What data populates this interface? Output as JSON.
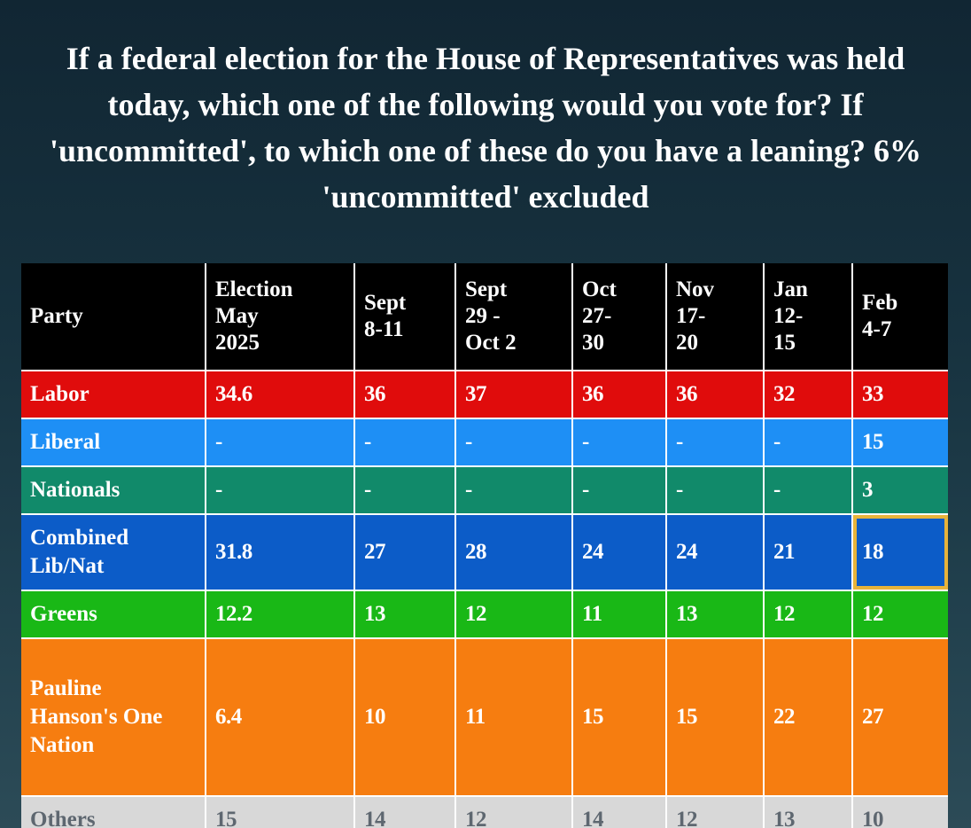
{
  "title": "If a federal election for the House of Representatives was held today, which one of the following would you vote for? If 'uncommitted', to which one of these do you have a leaning? 6% 'uncommitted' excluded",
  "chart_data": {
    "type": "table",
    "title": "If a federal election for the House of Representatives was held today, which one of the following would you vote for? If 'uncommitted', to which one of these do you have a leaning? 6% 'uncommitted' excluded",
    "row_header": "Party",
    "columns": [
      "Election May 2025",
      "Sept 8-11",
      "Sept 29 - Oct 2",
      "Oct 27-30",
      "Nov 17-20",
      "Jan 12-15",
      "Feb 4-7"
    ],
    "rows": [
      {
        "party": "Labor",
        "values": [
          "34.6",
          "36",
          "37",
          "36",
          "36",
          "32",
          "33"
        ],
        "color": "#e00c0c",
        "text_color": "#ffffff",
        "highlight": null
      },
      {
        "party": "Liberal",
        "values": [
          "-",
          "-",
          "-",
          "-",
          "-",
          "-",
          "15"
        ],
        "color": "#1e8ff5",
        "text_color": "#ffffff",
        "highlight": null
      },
      {
        "party": "Nationals",
        "values": [
          "-",
          "-",
          "-",
          "-",
          "-",
          "-",
          "3"
        ],
        "color": "#118a6a",
        "text_color": "#ffffff",
        "highlight": null
      },
      {
        "party": "Combined Lib/Nat",
        "values": [
          "31.8",
          "27",
          "28",
          "24",
          "24",
          "21",
          "18"
        ],
        "color": "#0c5cc8",
        "text_color": "#ffffff",
        "highlight": 6
      },
      {
        "party": "Greens",
        "values": [
          "12.2",
          "13",
          "12",
          "11",
          "13",
          "12",
          "12"
        ],
        "color": "#19b816",
        "text_color": "#ffffff",
        "highlight": null
      },
      {
        "party": "Pauline Hanson's One Nation",
        "values": [
          "6.4",
          "10",
          "11",
          "15",
          "15",
          "22",
          "27"
        ],
        "color": "#f67d10",
        "text_color": "#ffffff",
        "highlight": null
      },
      {
        "party": "Others",
        "values": [
          "15",
          "14",
          "12",
          "14",
          "12",
          "13",
          "10"
        ],
        "color": "#d8d8d8",
        "text_color": "#5e6770",
        "highlight": null
      }
    ],
    "highlight_color": "#e8b33a",
    "header_color": "#000000"
  }
}
